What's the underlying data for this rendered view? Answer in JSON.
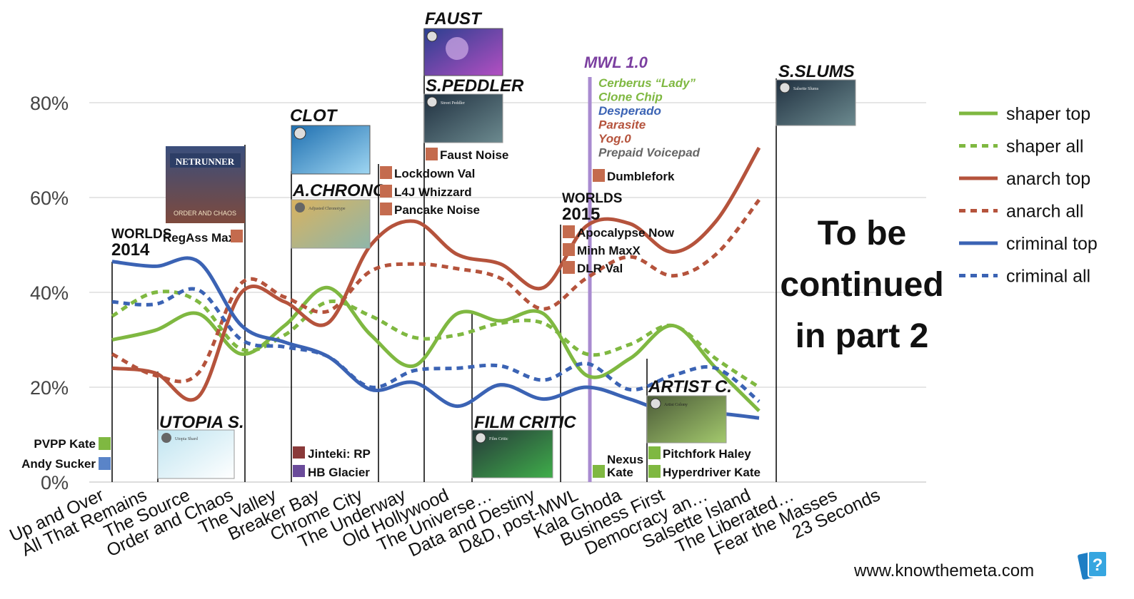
{
  "chart_data": {
    "type": "line",
    "categories": [
      "Up and Over",
      "All That Remains",
      "The Source",
      "Order and Chaos",
      "The Valley",
      "Breaker Bay",
      "Chrome City",
      "The Underway",
      "Old Hollywood",
      "The Universe…",
      "Data and Destiny",
      "D&D, post-MWL",
      "Kala Ghoda",
      "Business First",
      "Democracy an…",
      "Salsette Island",
      "The Liberated…",
      "Fear the Masses",
      "23 Seconds"
    ],
    "yticks": [
      "0%",
      "20%",
      "40%",
      "60%",
      "80%"
    ],
    "ylim": [
      0,
      85
    ],
    "grid": true,
    "legend_position": "right",
    "series": [
      {
        "name": "shaper top",
        "style": "solid",
        "color": "#7fb841",
        "values": [
          30,
          32,
          35.5,
          27,
          33,
          41,
          31,
          24.5,
          35.5,
          34,
          35.5,
          22.5,
          26,
          33,
          24,
          15,
          null,
          null,
          null
        ]
      },
      {
        "name": "shaper all",
        "style": "dotted",
        "color": "#7fb841",
        "values": [
          35,
          40,
          38,
          28,
          31,
          38,
          35,
          30.5,
          31,
          33.5,
          33.5,
          27,
          29,
          33,
          26,
          20,
          null,
          null,
          null
        ]
      },
      {
        "name": "anarch top",
        "style": "solid",
        "color": "#b5533c",
        "values": [
          24,
          23,
          18,
          40,
          38,
          33.5,
          50,
          55,
          48,
          46,
          41,
          54,
          54.5,
          48.5,
          55,
          70.5,
          null,
          null,
          null
        ]
      },
      {
        "name": "anarch all",
        "style": "dotted",
        "color": "#b5533c",
        "values": [
          27,
          22.5,
          23,
          42,
          39,
          36,
          44.5,
          46,
          45,
          43,
          36.5,
          43,
          47.5,
          43.5,
          48,
          59.5,
          null,
          null,
          null
        ]
      },
      {
        "name": "criminal top",
        "style": "solid",
        "color": "#3b63b4",
        "values": [
          46.5,
          45.5,
          46.5,
          33,
          29.5,
          26.5,
          19.5,
          21,
          16,
          20.5,
          17.5,
          20,
          17.5,
          14.5,
          14.5,
          13.5,
          null,
          null,
          null
        ]
      },
      {
        "name": "criminal all",
        "style": "dotted",
        "color": "#3b63b4",
        "values": [
          38,
          37.5,
          40.5,
          30,
          28.5,
          26.5,
          20,
          23.5,
          24,
          24.5,
          21.5,
          25,
          19.5,
          22.5,
          24,
          17,
          null,
          null,
          null
        ]
      }
    ],
    "colors": {
      "grid": "#cccccc",
      "mwl_line": "#a98bd0",
      "mwl_text": "#7b3fa0"
    }
  },
  "annotations": {
    "worlds2014": {
      "line1": "WORLDS",
      "line2": "2014"
    },
    "worlds2015": {
      "line1": "WORLDS",
      "line2": "2015"
    },
    "netrunner_box": {
      "title": "NETRUNNER",
      "sub": "ORDER AND CHAOS"
    },
    "deck_labels": {
      "pvpp_kate": "PVPP Kate",
      "andy_sucker": "Andy Sucker",
      "regass_maxx": "RegAss MaxX",
      "jinteki_rp": "Jinteki: RP",
      "hb_glacier": "HB Glacier",
      "faust_noise": "Faust Noise",
      "lockdown_val": "Lockdown Val",
      "l4j_whizzard": "L4J Whizzard",
      "pancake_noise": "Pancake Noise",
      "apocalypse_now": "Apocalypse Now",
      "minh_maxx": "Minh MaxX",
      "dlr_val": "DLR Val",
      "dumblefork": "Dumblefork",
      "nexus_kate_1": "Nexus",
      "nexus_kate_2": "Kate",
      "pitchfork_haley": "Pitchfork Haley",
      "hyperdriver_kate": "Hyperdriver Kate"
    },
    "card_titles": {
      "utopia": "UTOPIA S.",
      "clot": "CLOT",
      "achrono": "A.CHRONO.",
      "faust": "FAUST",
      "speddler": "S.PEDDLER",
      "film_critic": "FILM CRITIC",
      "artist": "ARTIST C.",
      "sslums": "S.SLUMS"
    },
    "card_subtitles": {
      "utopia": "Utopia Shard",
      "clot": "",
      "achrono": "Adjusted Chronotype",
      "faust": "",
      "speddler": "Street Peddler",
      "film_critic": "Film Critic",
      "artist": "Artist Colony",
      "sslums": "Salsette Slums"
    },
    "mwl": {
      "title": "MWL 1.0",
      "items": [
        {
          "text": "Cerberus “Lady”",
          "color": "#7fb841"
        },
        {
          "text": "Clone Chip",
          "color": "#7fb841"
        },
        {
          "text": "Desperado",
          "color": "#3b63b4"
        },
        {
          "text": "Parasite",
          "color": "#b5533c"
        },
        {
          "text": "Yog.0",
          "color": "#b5533c"
        },
        {
          "text": "Prepaid Voicepad",
          "color": "#666666"
        }
      ]
    },
    "continued": [
      "To be",
      "continued",
      "in part 2"
    ],
    "website": "www.knowthemeta.com"
  }
}
